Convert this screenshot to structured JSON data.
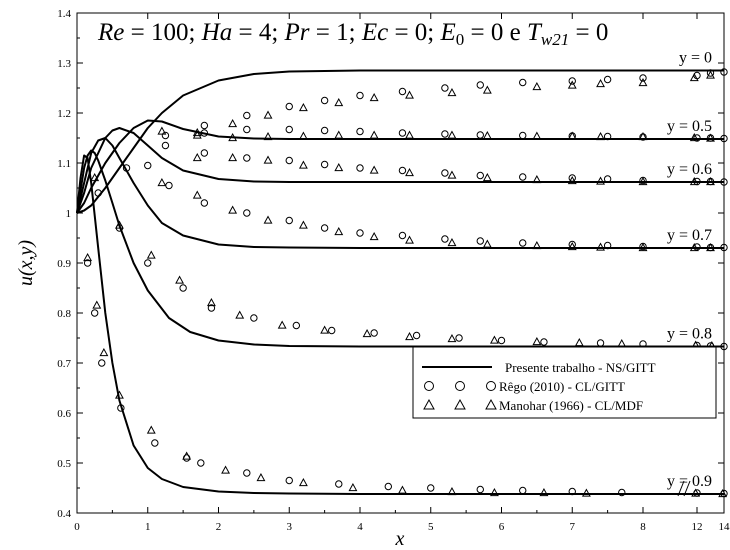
{
  "chart_data": {
    "type": "line",
    "title_parts": [
      "Re",
      " = 100; ",
      "Ha",
      " = 4; ",
      "Pr",
      " = 1; ",
      "Ec",
      " = 0; ",
      "E",
      "0",
      " = 0 e ",
      "T",
      "w21",
      " = 0"
    ],
    "xlabel": "x",
    "ylabel": "u(x,y)",
    "xlim": [
      0,
      14
    ],
    "ylim": [
      0.4,
      1.4
    ],
    "axis_break": "between 8 and 12",
    "xticks": [
      {
        "v": 0,
        "label": "0"
      },
      {
        "v": 1,
        "label": "1"
      },
      {
        "v": 2,
        "label": "2"
      },
      {
        "v": 3,
        "label": "3"
      },
      {
        "v": 4,
        "label": "4"
      },
      {
        "v": 5,
        "label": "5"
      },
      {
        "v": 6,
        "label": "6"
      },
      {
        "v": 7,
        "label": "7"
      },
      {
        "v": 8,
        "label": "8"
      },
      {
        "v": 12,
        "label": "12"
      },
      {
        "v": 14,
        "label": "14"
      }
    ],
    "yticks": [
      "0.4",
      "0.5",
      "0.6",
      "0.7",
      "0.8",
      "0.9",
      "1",
      "1.1",
      "1.2",
      "1.3",
      "1.4"
    ],
    "legend": {
      "placement": "lower-right",
      "entries": [
        "Presente trabalho - NS/GITT",
        "Rêgo (2010) - CL/GITT",
        "Manohar (1966) - CL/MDF"
      ]
    },
    "series": [
      {
        "y": 0,
        "label": "y = 0",
        "ns": {
          "x": [
            0,
            0.1,
            0.2,
            0.4,
            0.6,
            0.8,
            1.0,
            1.2,
            1.5,
            2.0,
            2.5,
            3.0,
            4.0,
            6.0,
            8.0,
            14.0
          ],
          "u": [
            1.0,
            1.005,
            1.015,
            1.05,
            1.09,
            1.13,
            1.17,
            1.2,
            1.235,
            1.265,
            1.278,
            1.283,
            1.285,
            1.285,
            1.285,
            1.285
          ]
        },
        "rego": {
          "x": [
            1.8,
            2.4,
            3.0,
            3.5,
            4.0,
            4.6,
            5.2,
            5.7,
            6.3,
            7.0,
            7.5,
            8.0,
            12.0,
            13.0,
            14.0
          ],
          "u": [
            1.175,
            1.195,
            1.213,
            1.225,
            1.235,
            1.243,
            1.25,
            1.256,
            1.261,
            1.264,
            1.267,
            1.27,
            1.275,
            1.28,
            1.282
          ]
        },
        "manohar": {
          "x": [
            1.7,
            2.2,
            2.7,
            3.2,
            3.7,
            4.2,
            4.7,
            5.3,
            5.8,
            6.5,
            7.0,
            7.4,
            8.0,
            11.8,
            13.0
          ],
          "u": [
            1.16,
            1.178,
            1.195,
            1.21,
            1.22,
            1.23,
            1.235,
            1.24,
            1.245,
            1.252,
            1.255,
            1.258,
            1.26,
            1.27,
            1.275
          ]
        }
      },
      {
        "y": 0.5,
        "label": "y = 0.5",
        "ns": {
          "x": [
            0,
            0.1,
            0.2,
            0.4,
            0.6,
            0.8,
            1.0,
            1.2,
            1.5,
            2.0,
            2.5,
            3.0,
            4.0,
            6.0,
            8.0,
            14.0
          ],
          "u": [
            1.0,
            1.02,
            1.05,
            1.1,
            1.14,
            1.17,
            1.185,
            1.183,
            1.168,
            1.153,
            1.149,
            1.148,
            1.148,
            1.148,
            1.148,
            1.148
          ]
        },
        "rego": {
          "x": [
            1.0,
            1.25,
            1.8,
            2.4,
            3.0,
            3.5,
            4.0,
            4.6,
            5.2,
            5.7,
            6.3,
            7.0,
            7.5,
            8.0,
            12.0,
            13.0,
            14.0
          ],
          "u": [
            1.095,
            1.155,
            1.16,
            1.167,
            1.167,
            1.165,
            1.163,
            1.16,
            1.158,
            1.156,
            1.155,
            1.154,
            1.153,
            1.152,
            1.15,
            1.15,
            1.149
          ]
        },
        "manohar": {
          "x": [
            1.2,
            1.7,
            2.2,
            2.7,
            3.2,
            3.7,
            4.2,
            4.7,
            5.3,
            5.8,
            6.5,
            7.0,
            7.4,
            8.0,
            11.8,
            13.0
          ],
          "u": [
            1.163,
            1.155,
            1.15,
            1.152,
            1.153,
            1.155,
            1.155,
            1.155,
            1.155,
            1.154,
            1.153,
            1.153,
            1.152,
            1.152,
            1.15,
            1.149
          ]
        }
      },
      {
        "y": 0.6,
        "label": "y = 0.6",
        "ns": {
          "x": [
            0,
            0.1,
            0.2,
            0.4,
            0.5,
            0.6,
            0.8,
            1.0,
            1.2,
            1.5,
            2.0,
            2.5,
            3.0,
            4.0,
            6.0,
            8.0,
            14.0
          ],
          "u": [
            1.0,
            1.04,
            1.09,
            1.15,
            1.165,
            1.17,
            1.16,
            1.135,
            1.11,
            1.085,
            1.068,
            1.063,
            1.062,
            1.062,
            1.062,
            1.062,
            1.062
          ]
        },
        "rego": {
          "x": [
            1.25,
            1.8,
            2.4,
            3.0,
            3.5,
            4.0,
            4.6,
            5.2,
            5.7,
            6.3,
            7.0,
            7.5,
            8.0,
            12.0,
            13.0,
            14.0
          ],
          "u": [
            1.135,
            1.12,
            1.11,
            1.105,
            1.097,
            1.09,
            1.085,
            1.08,
            1.075,
            1.072,
            1.07,
            1.068,
            1.065,
            1.063,
            1.063,
            1.062
          ]
        },
        "manohar": {
          "x": [
            1.7,
            2.2,
            2.7,
            3.2,
            3.7,
            4.2,
            4.7,
            5.3,
            5.8,
            6.5,
            7.0,
            7.4,
            8.0,
            11.8,
            13.0
          ],
          "u": [
            1.11,
            1.11,
            1.105,
            1.095,
            1.09,
            1.085,
            1.08,
            1.075,
            1.07,
            1.066,
            1.064,
            1.063,
            1.062,
            1.062,
            1.062
          ]
        }
      },
      {
        "y": 0.7,
        "label": "y = 0.7",
        "ns": {
          "x": [
            0,
            0.1,
            0.2,
            0.3,
            0.4,
            0.5,
            0.6,
            0.8,
            1.0,
            1.2,
            1.5,
            2.0,
            2.5,
            3.0,
            4.0,
            6.0,
            8.0,
            14.0
          ],
          "u": [
            1.0,
            1.06,
            1.12,
            1.145,
            1.15,
            1.135,
            1.11,
            1.06,
            1.015,
            0.98,
            0.955,
            0.937,
            0.932,
            0.931,
            0.93,
            0.93,
            0.93,
            0.93
          ]
        },
        "rego": {
          "x": [
            0.7,
            1.3,
            1.8,
            2.4,
            3.0,
            3.5,
            4.0,
            4.6,
            5.2,
            5.7,
            6.3,
            7.0,
            7.5,
            8.0,
            12.0,
            13.0,
            14.0
          ],
          "u": [
            1.09,
            1.055,
            1.02,
            1.0,
            0.985,
            0.97,
            0.96,
            0.955,
            0.948,
            0.944,
            0.94,
            0.937,
            0.935,
            0.933,
            0.932,
            0.931,
            0.931
          ]
        },
        "manohar": {
          "x": [
            1.2,
            1.7,
            2.2,
            2.7,
            3.2,
            3.7,
            4.2,
            4.7,
            5.3,
            5.8,
            6.5,
            7.0,
            7.4,
            8.0,
            11.8,
            13.0
          ],
          "u": [
            1.06,
            1.035,
            1.005,
            0.985,
            0.975,
            0.962,
            0.952,
            0.945,
            0.94,
            0.937,
            0.934,
            0.932,
            0.931,
            0.93,
            0.93,
            0.93
          ]
        }
      },
      {
        "y": 0.8,
        "label": "y = 0.8",
        "ns": {
          "x": [
            0,
            0.1,
            0.15,
            0.2,
            0.25,
            0.3,
            0.4,
            0.5,
            0.6,
            0.8,
            1.0,
            1.3,
            1.6,
            2.0,
            2.5,
            3.0,
            4.0,
            6.0,
            8.0,
            14.0
          ],
          "u": [
            1.0,
            1.09,
            1.115,
            1.125,
            1.12,
            1.105,
            1.065,
            1.02,
            0.975,
            0.9,
            0.845,
            0.79,
            0.762,
            0.745,
            0.737,
            0.734,
            0.733,
            0.733,
            0.733,
            0.733
          ]
        },
        "rego": {
          "x": [
            0.3,
            0.6,
            1.0,
            1.5,
            1.9,
            2.5,
            3.1,
            3.6,
            4.2,
            4.8,
            5.4,
            6.0,
            6.6,
            7.4,
            8.0,
            12.0,
            13.0,
            14.0
          ],
          "u": [
            1.04,
            0.97,
            0.9,
            0.85,
            0.81,
            0.79,
            0.775,
            0.765,
            0.76,
            0.755,
            0.75,
            0.745,
            0.742,
            0.74,
            0.738,
            0.735,
            0.734,
            0.733
          ]
        },
        "manohar": {
          "x": [
            0.25,
            0.6,
            1.05,
            1.45,
            1.9,
            2.3,
            2.9,
            3.5,
            4.1,
            4.7,
            5.3,
            5.9,
            6.5,
            7.1,
            7.7,
            11.9,
            13.1
          ],
          "u": [
            1.07,
            0.975,
            0.915,
            0.865,
            0.82,
            0.795,
            0.775,
            0.765,
            0.758,
            0.752,
            0.748,
            0.745,
            0.742,
            0.74,
            0.738,
            0.735,
            0.734
          ]
        }
      },
      {
        "y": 0.9,
        "label": "y = 0.9",
        "ns": {
          "x": [
            0,
            0.05,
            0.1,
            0.15,
            0.2,
            0.3,
            0.4,
            0.5,
            0.6,
            0.8,
            1.0,
            1.2,
            1.5,
            2.0,
            2.5,
            3.0,
            4.0,
            6.0,
            8.0,
            14.0
          ],
          "u": [
            1.0,
            1.07,
            1.115,
            1.11,
            1.06,
            0.93,
            0.8,
            0.7,
            0.625,
            0.535,
            0.49,
            0.468,
            0.452,
            0.443,
            0.44,
            0.439,
            0.438,
            0.438,
            0.438,
            0.438
          ]
        },
        "rego": {
          "x": [
            0.15,
            0.25,
            0.35,
            0.62,
            1.1,
            1.55,
            1.75,
            2.4,
            3.0,
            3.7,
            4.4,
            5.0,
            5.7,
            6.3,
            7.0,
            7.7,
            12.0,
            14.0
          ],
          "u": [
            0.9,
            0.8,
            0.7,
            0.61,
            0.54,
            0.51,
            0.5,
            0.48,
            0.465,
            0.458,
            0.453,
            0.45,
            0.447,
            0.445,
            0.443,
            0.441,
            0.44,
            0.439
          ]
        },
        "manohar": {
          "x": [
            0.15,
            0.28,
            0.38,
            0.6,
            1.05,
            1.55,
            2.1,
            2.6,
            3.2,
            3.9,
            4.6,
            5.3,
            5.9,
            6.6,
            7.2,
            11.9,
            13.9
          ],
          "u": [
            0.91,
            0.815,
            0.72,
            0.635,
            0.565,
            0.513,
            0.485,
            0.47,
            0.46,
            0.45,
            0.445,
            0.442,
            0.44,
            0.44,
            0.439,
            0.439,
            0.438
          ]
        }
      }
    ]
  }
}
